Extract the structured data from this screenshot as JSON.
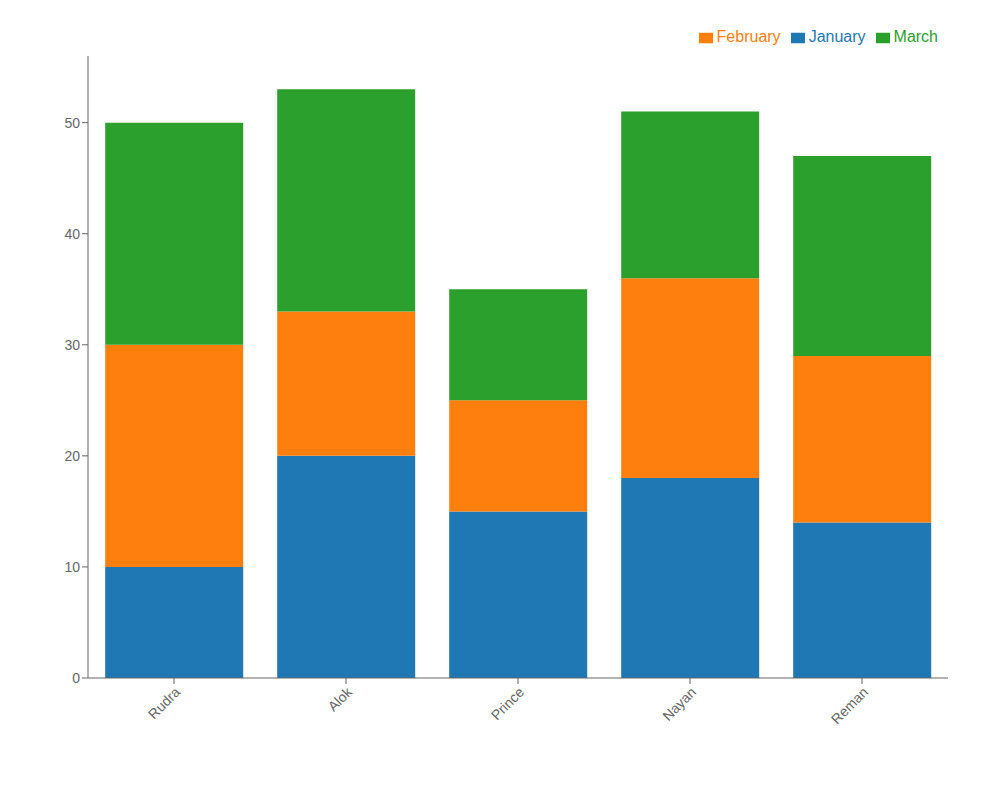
{
  "chart_data": {
    "type": "bar",
    "stacked": true,
    "categories": [
      "Rudra",
      "Alok",
      "Prince",
      "Nayan",
      "Reman"
    ],
    "series": [
      {
        "name": "January",
        "color": "#1f77b4",
        "values": [
          10,
          20,
          15,
          18,
          14
        ]
      },
      {
        "name": "February",
        "color": "#ff7f0e",
        "values": [
          20,
          13,
          10,
          18,
          15
        ]
      },
      {
        "name": "March",
        "color": "#2ca02c",
        "values": [
          20,
          20,
          10,
          15,
          18
        ]
      }
    ],
    "ylim": [
      0,
      56
    ],
    "yticks": [
      0,
      10,
      20,
      30,
      40,
      50
    ],
    "grid": false,
    "legend": "upper right"
  }
}
